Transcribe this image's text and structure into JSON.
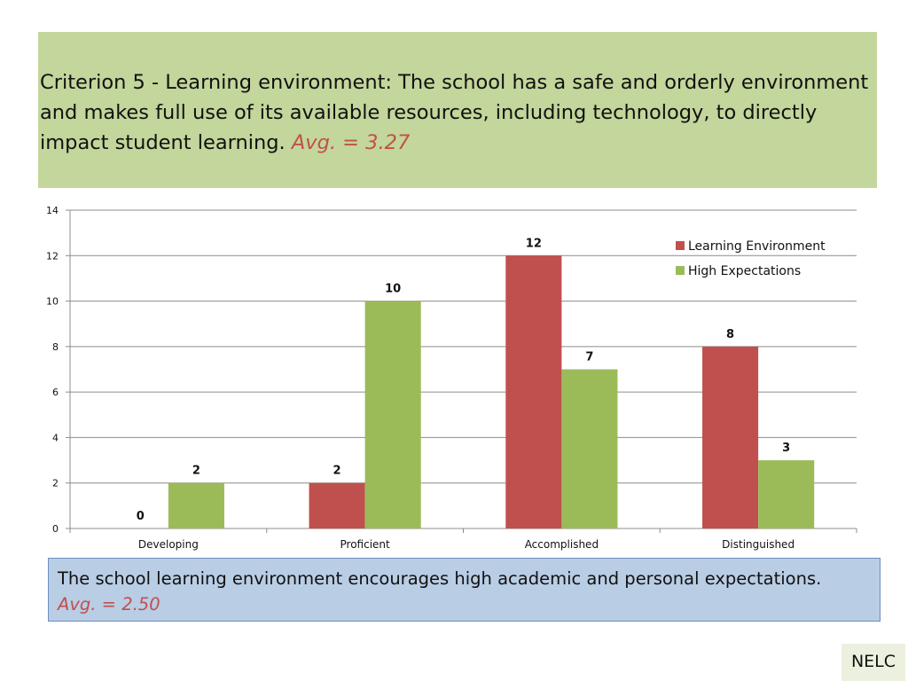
{
  "header": {
    "title": "Criterion 5 - Learning environment: The school has a safe and orderly environment and makes full use of its available resources, including technology, to directly impact student learning.",
    "avg": "Avg. = 3.27"
  },
  "note": {
    "text": "The school learning environment encourages high academic and personal expectations.",
    "avg": "Avg. = 2.50"
  },
  "footer_tag": "NELC",
  "colors": {
    "learning_environment": "#c0504d",
    "high_expectations": "#9bbb59",
    "title_bg": "#c3d69b",
    "note_bg": "#b9cde5",
    "avg_text": "#c0504d"
  },
  "chart_data": {
    "type": "bar",
    "categories": [
      "Developing",
      "Proficient",
      "Accomplished",
      "Distinguished"
    ],
    "series": [
      {
        "name": "Learning Environment",
        "values": [
          0,
          2,
          12,
          8
        ]
      },
      {
        "name": "High Expectations",
        "values": [
          2,
          10,
          7,
          3
        ]
      }
    ],
    "title": "",
    "xlabel": "",
    "ylabel": "",
    "ylim": [
      0,
      14
    ],
    "yticks": [
      0,
      2,
      4,
      6,
      8,
      10,
      12,
      14
    ],
    "grid": true,
    "legend": "top-right",
    "data_labels": true
  }
}
